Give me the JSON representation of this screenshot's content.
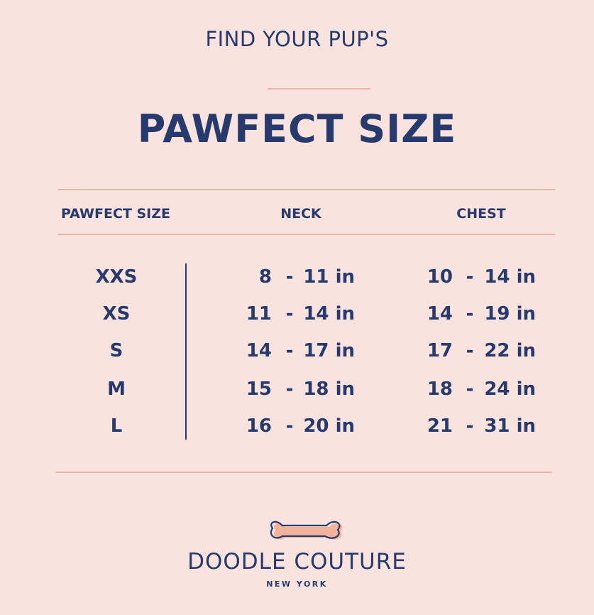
{
  "header": {
    "pretitle": "FIND YOUR PUP'S",
    "title": "PAWFECT SIZE"
  },
  "table": {
    "columns": [
      "PAWFECT SIZE",
      "NECK",
      "CHEST"
    ],
    "rows": [
      {
        "size": "XXS",
        "neck": {
          "low": "8",
          "high": "11 in"
        },
        "chest": {
          "low": "10",
          "high": "14 in"
        }
      },
      {
        "size": "XS",
        "neck": {
          "low": "11",
          "high": "14 in"
        },
        "chest": {
          "low": "14",
          "high": "19 in"
        }
      },
      {
        "size": "S",
        "neck": {
          "low": "14",
          "high": "17 in"
        },
        "chest": {
          "low": "17",
          "high": "22 in"
        }
      },
      {
        "size": "M",
        "neck": {
          "low": "15",
          "high": "18 in"
        },
        "chest": {
          "low": "18",
          "high": "24 in"
        }
      },
      {
        "size": "L",
        "neck": {
          "low": "16",
          "high": "20 in"
        },
        "chest": {
          "low": "21",
          "high": "31 in"
        }
      }
    ],
    "separator": "-"
  },
  "brand": {
    "name": "DOODLE COUTURE",
    "city": "NEW YORK",
    "logo_icon": "bone-icon"
  },
  "colors": {
    "background": "#f9e3de",
    "text": "#263a6e",
    "rule": "#eeb3a5",
    "bone_fill": "#f2b49c"
  }
}
